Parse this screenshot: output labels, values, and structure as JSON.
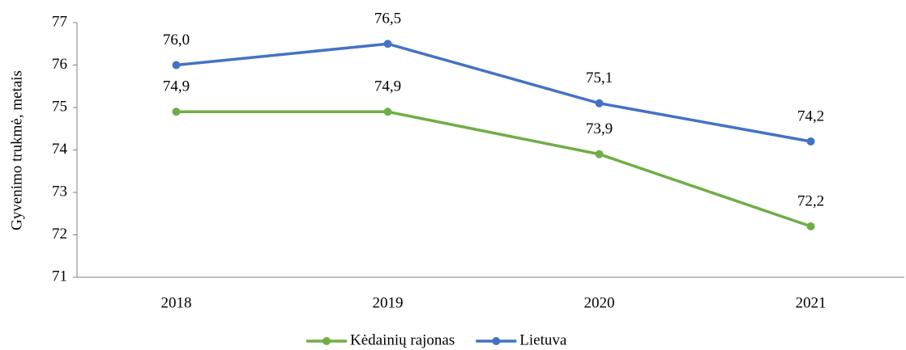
{
  "chart_data": {
    "type": "line",
    "y_label": "Gyvenimo trukmė, metais",
    "categories": [
      "2018",
      "2019",
      "2020",
      "2021"
    ],
    "series": [
      {
        "name": "Kėdainių rajonas",
        "color": "#70ad47",
        "values": [
          74.9,
          74.9,
          73.9,
          72.2
        ],
        "value_labels": [
          "74,9",
          "74,9",
          "73,9",
          "72,2"
        ]
      },
      {
        "name": "Lietuva",
        "color": "#4472c4",
        "values": [
          76.0,
          76.5,
          75.1,
          74.2
        ],
        "value_labels": [
          "76,0",
          "76,5",
          "75,1",
          "74,2"
        ]
      }
    ],
    "ylim": [
      71,
      77
    ],
    "yticks": [
      71,
      72,
      73,
      74,
      75,
      76,
      77
    ],
    "grid": false,
    "legend": "bottom"
  }
}
